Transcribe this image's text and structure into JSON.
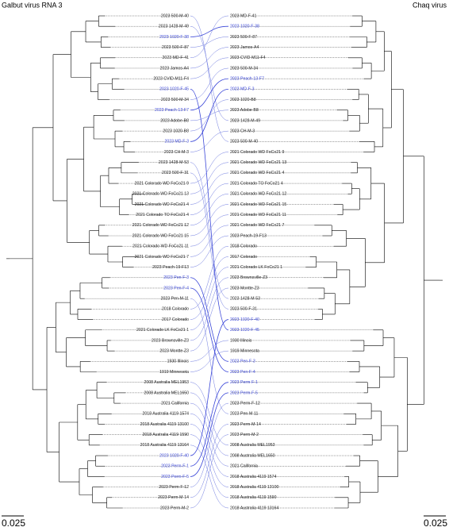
{
  "left_tree": {
    "title": "Galbut virus RNA 3",
    "scale_bar": 0.025,
    "tips": [
      {
        "label": "2023 500-M-40"
      },
      {
        "label": "2023 1428-M-49"
      },
      {
        "label": "2023 1020-F-38",
        "color": "#3a46d8"
      },
      {
        "label": "2023 500-F-87"
      },
      {
        "label": "2023 MD-F-41"
      },
      {
        "label": "2023 Jamos-A4"
      },
      {
        "label": "2023 CVID-M11-F4"
      },
      {
        "label": "2023 1020-F-45",
        "color": "#3a46d8"
      },
      {
        "label": "2023 500-M-34"
      },
      {
        "label": "2023 Peach-13-F7",
        "color": "#3a46d8"
      },
      {
        "label": "2023 Adobe-B8"
      },
      {
        "label": "2023 1020-B8"
      },
      {
        "label": "2023 MD-F-3",
        "color": "#3a46d8"
      },
      {
        "label": "2023 CH-M-3"
      },
      {
        "label": "2023 1428-M-53"
      },
      {
        "label": "2023 500-F-31"
      },
      {
        "label": "2021 Colorado WD FoCo21 9"
      },
      {
        "label": "2021 Colorado WD FoCo21 13"
      },
      {
        "label": "2021 Colorado WD FoCo21 4"
      },
      {
        "label": "2021 Colorado TO FoCo21 4"
      },
      {
        "label": "2021 Colorado WD FoCo21 12"
      },
      {
        "label": "2021 Colorado WD FoCo21 15"
      },
      {
        "label": "2021 Colorado WD FoCo21 11"
      },
      {
        "label": "2021 Colorado WD FoCo21 7"
      },
      {
        "label": "2023 Peach-19-F13"
      },
      {
        "label": "2023 Pen-F-3",
        "color": "#3a46d8"
      },
      {
        "label": "2023 Pen-F-4",
        "color": "#3a46d8"
      },
      {
        "label": "2023 Pen-M-11"
      },
      {
        "label": "2018 Colorado"
      },
      {
        "label": "2017 Colorado"
      },
      {
        "label": "2021 Colorado LK FoCo21 1"
      },
      {
        "label": "2023 Brownsville-Z3"
      },
      {
        "label": "2023 Montte-Z3"
      },
      {
        "label": "1930 Illinois"
      },
      {
        "label": "1919 Minnesota"
      },
      {
        "label": "2008 Australia MEL1953"
      },
      {
        "label": "2008 Australia MEL1650"
      },
      {
        "label": "2021 California"
      },
      {
        "label": "2018 Australia 4119 1574"
      },
      {
        "label": "2018 Australia 4119 13100"
      },
      {
        "label": "2018 Australia 4119 1590"
      },
      {
        "label": "2018 Australia 4119 13164"
      },
      {
        "label": "2023 1020-F-40",
        "color": "#3a46d8"
      },
      {
        "label": "2023 Perm-F-1",
        "color": "#3a46d8"
      },
      {
        "label": "2023 Perm-F-5",
        "color": "#3a46d8"
      },
      {
        "label": "2023 Perm-F-12"
      },
      {
        "label": "2023 Perm-M-14"
      },
      {
        "label": "2023 Perm-M-2"
      }
    ]
  },
  "right_tree": {
    "title": "Chaq virus",
    "scale_bar": 0.025,
    "tips": [
      {
        "label": "2023 MD-F-41"
      },
      {
        "label": "2023 1020-F-38",
        "color": "#3a46d8"
      },
      {
        "label": "2023 500-F-87"
      },
      {
        "label": "2023 Jamos-A4"
      },
      {
        "label": "2023 CVID-M11-F4"
      },
      {
        "label": "2023 500-M-34"
      },
      {
        "label": "2023 Peach-13-F7",
        "color": "#3a46d8"
      },
      {
        "label": "2023 MD-F-3",
        "color": "#3a46d8"
      },
      {
        "label": "2023 1020-B8"
      },
      {
        "label": "2023 Adobe-B8"
      },
      {
        "label": "2023 1428-M-49"
      },
      {
        "label": "2023 CH-M-3"
      },
      {
        "label": "2023 500-M-40"
      },
      {
        "label": "2021 Colorado WD FoCo21 9"
      },
      {
        "label": "2021 Colorado WD FoCo21 13"
      },
      {
        "label": "2021 Colorado WD FoCo21 4"
      },
      {
        "label": "2021 Colorado TO FoCo21 4"
      },
      {
        "label": "2021 Colorado WD FoCo21 12"
      },
      {
        "label": "2021 Colorado WD FoCo21 15"
      },
      {
        "label": "2021 Colorado WD FoCo21 11"
      },
      {
        "label": "2021 Colorado WD FoCo21 7"
      },
      {
        "label": "2023 Peach-19-F13"
      },
      {
        "label": "2018 Colorado"
      },
      {
        "label": "2017 Colorado"
      },
      {
        "label": "2021 Colorado LK FoCo21 1"
      },
      {
        "label": "2023 Brownsville-Z3"
      },
      {
        "label": "2023 Montte-Z3"
      },
      {
        "label": "2023 1428-M-53"
      },
      {
        "label": "2023 500-F-31"
      },
      {
        "label": "2023 1020-F-40",
        "color": "#3a46d8"
      },
      {
        "label": "2023 1020-F-45",
        "color": "#3a46d8"
      },
      {
        "label": "1930 Illinois"
      },
      {
        "label": "1919 Minnesota"
      },
      {
        "label": "2023 Pen-F-3",
        "color": "#3a46d8"
      },
      {
        "label": "2023 Pen-F-4",
        "color": "#3a46d8"
      },
      {
        "label": "2023 Perm-F-1",
        "color": "#3a46d8"
      },
      {
        "label": "2023 Perm-F-5",
        "color": "#3a46d8"
      },
      {
        "label": "2023 Perm-F-12"
      },
      {
        "label": "2023 Pen-M-11"
      },
      {
        "label": "2023 Perm-M-14"
      },
      {
        "label": "2023 Perm-M-2"
      },
      {
        "label": "2008 Australia MEL1953"
      },
      {
        "label": "2008 Australia MEL1650"
      },
      {
        "label": "2021 California"
      },
      {
        "label": "2018 Australia 4119 1574"
      },
      {
        "label": "2018 Australia 4119 13100"
      },
      {
        "label": "2018 Australia 4119 1590"
      },
      {
        "label": "2018 Australia 4119 13164"
      }
    ]
  }
}
